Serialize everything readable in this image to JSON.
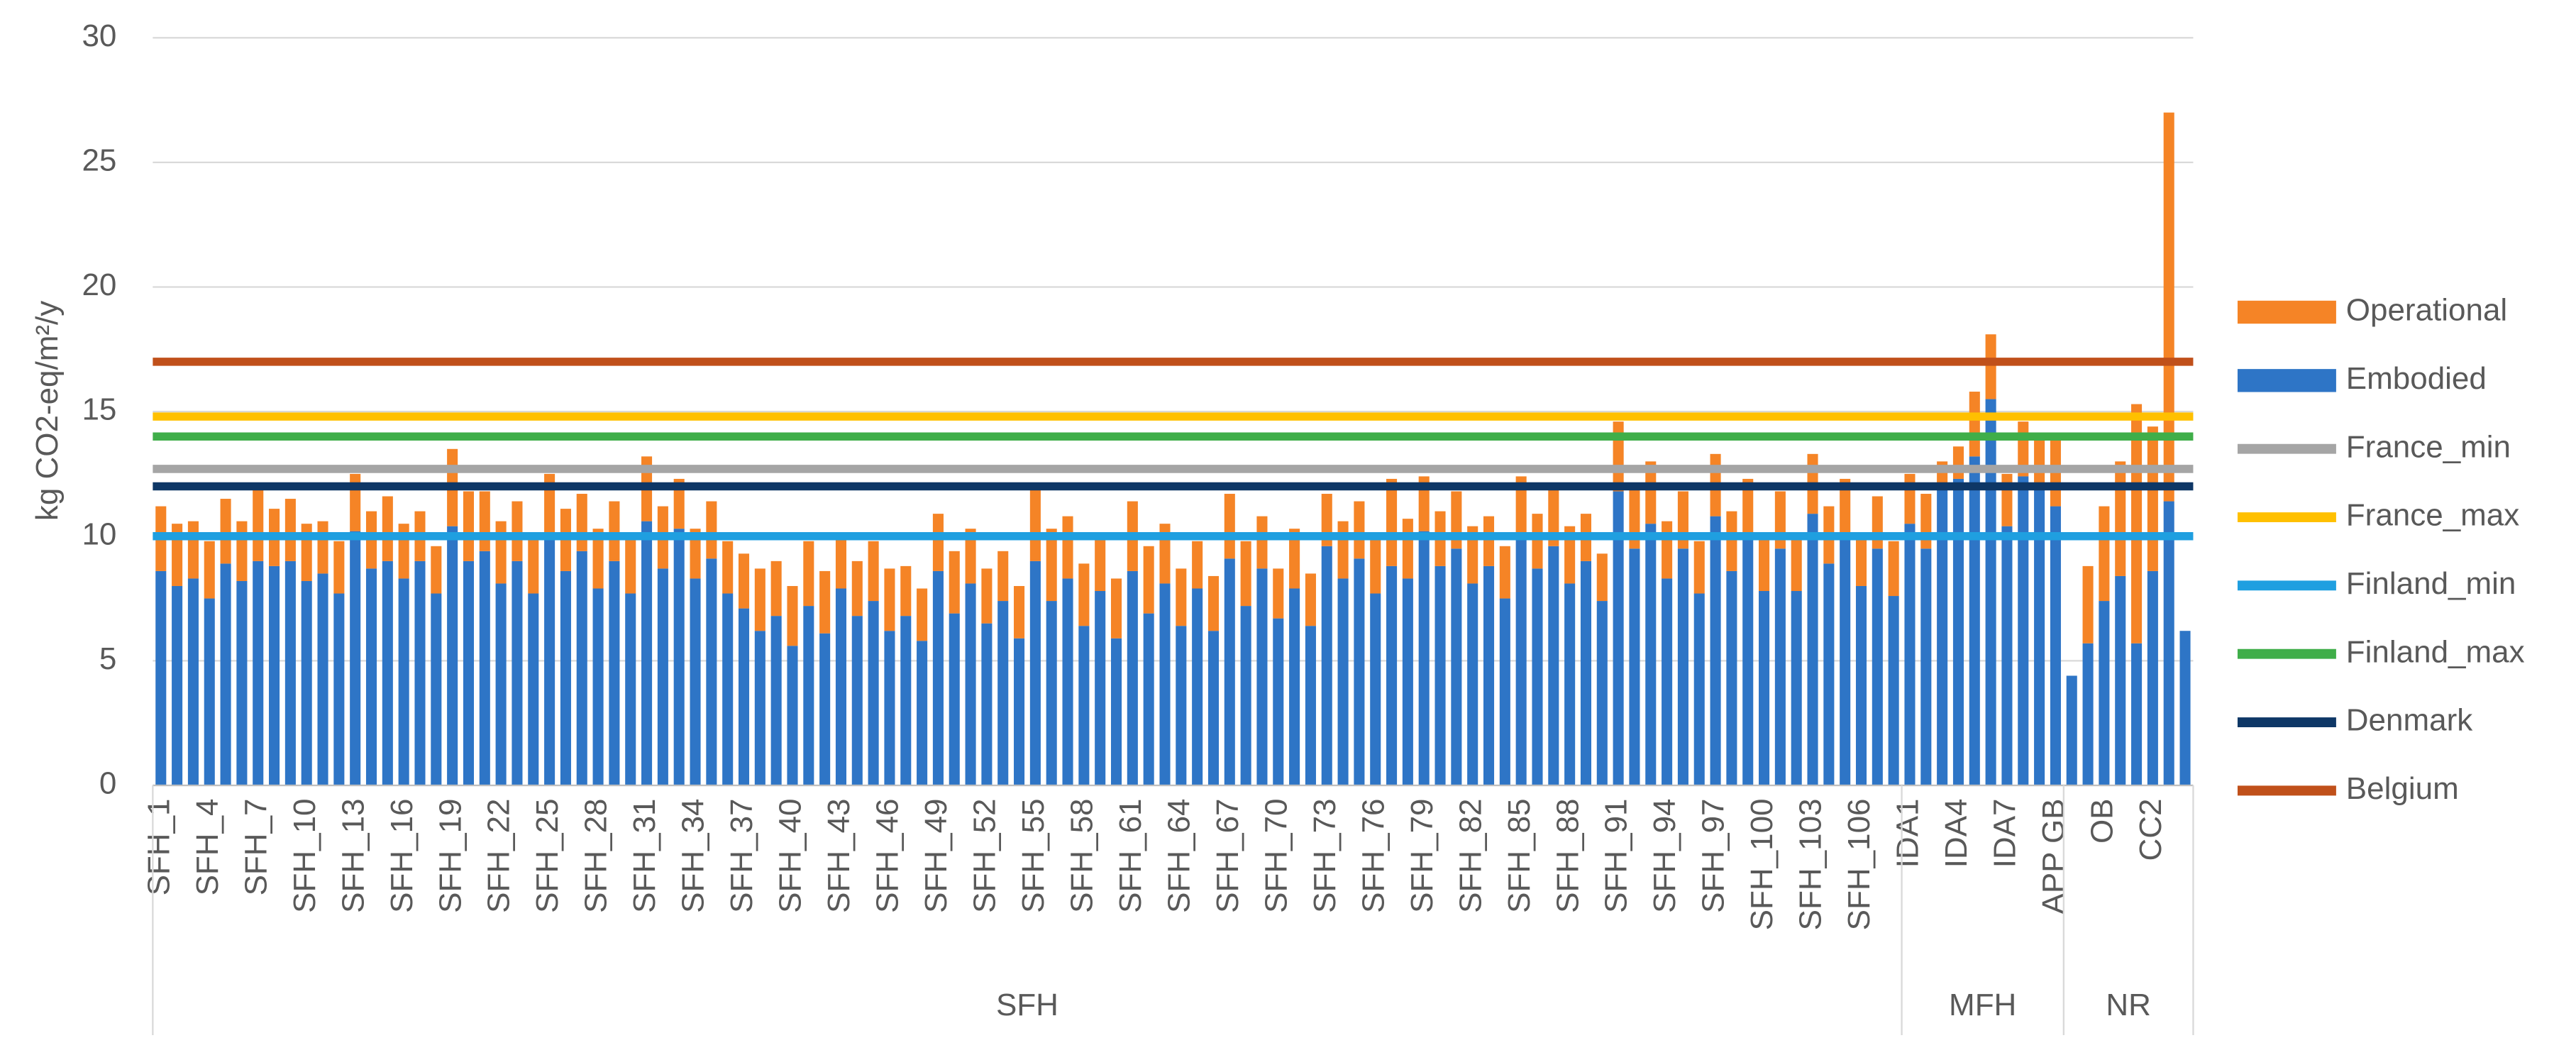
{
  "chart_data": {
    "type": "stacked_bar",
    "y_label": "kg CO2-eq/m²/y",
    "ylim": [
      0,
      30
    ],
    "yticks": [
      0,
      5,
      10,
      15,
      20,
      25,
      30
    ],
    "grid": true,
    "legend": "right",
    "categories": [
      "SFH_1",
      null,
      null,
      "SFH_4",
      null,
      null,
      "SFH_7",
      null,
      null,
      "SFH_10",
      null,
      null,
      "SFH_13",
      null,
      null,
      "SFH_16",
      null,
      null,
      "SFH_19",
      null,
      null,
      "SFH_22",
      null,
      null,
      "SFH_25",
      null,
      null,
      "SFH_28",
      null,
      null,
      "SFH_31",
      null,
      null,
      "SFH_34",
      null,
      null,
      "SFH_37",
      null,
      null,
      "SFH_40",
      null,
      null,
      "SFH_43",
      null,
      null,
      "SFH_46",
      null,
      null,
      "SFH_49",
      null,
      null,
      "SFH_52",
      null,
      null,
      "SFH_55",
      null,
      null,
      "SFH_58",
      null,
      null,
      "SFH_61",
      null,
      null,
      "SFH_64",
      null,
      null,
      "SFH_67",
      null,
      null,
      "SFH_70",
      null,
      null,
      "SFH_73",
      null,
      null,
      "SFH_76",
      null,
      null,
      "SFH_79",
      null,
      null,
      "SFH_82",
      null,
      null,
      "SFH_85",
      null,
      null,
      "SFH_88",
      null,
      null,
      "SFH_91",
      null,
      null,
      "SFH_94",
      null,
      null,
      "SFH_97",
      null,
      null,
      "SFH_100",
      null,
      null,
      "SFH_103",
      null,
      null,
      "SFH_106",
      null,
      null,
      "IDA1",
      null,
      null,
      "IDA4",
      null,
      null,
      "IDA7",
      null,
      null,
      "APP GB",
      null,
      null,
      "OB",
      null,
      null,
      "CC2",
      null,
      null
    ],
    "groups": [
      {
        "name": "SFH",
        "span": 108
      },
      {
        "name": "MFH",
        "span": 10
      },
      {
        "name": "NR",
        "span": 8
      }
    ],
    "series": [
      {
        "name": "Embodied",
        "color": "#2e75c6",
        "values": [
          8.6,
          8.0,
          8.3,
          7.5,
          8.9,
          8.2,
          9.0,
          8.8,
          9.0,
          8.2,
          8.5,
          7.7,
          10.2,
          8.7,
          9.0,
          8.3,
          9.0,
          7.7,
          10.4,
          9.0,
          9.4,
          8.1,
          9.0,
          7.7,
          10.0,
          8.6,
          9.4,
          7.9,
          9.0,
          7.7,
          10.6,
          8.7,
          10.3,
          8.3,
          9.1,
          7.7,
          7.1,
          6.2,
          6.8,
          5.6,
          7.2,
          6.1,
          7.9,
          6.8,
          7.4,
          6.2,
          6.8,
          5.8,
          8.6,
          6.9,
          8.1,
          6.5,
          7.4,
          5.9,
          9.0,
          7.4,
          8.3,
          6.4,
          7.8,
          5.9,
          8.6,
          6.9,
          8.1,
          6.4,
          7.9,
          6.2,
          9.1,
          7.2,
          8.7,
          6.7,
          7.9,
          6.4,
          9.6,
          8.3,
          9.1,
          7.7,
          8.8,
          8.3,
          10.2,
          8.8,
          9.5,
          8.1,
          8.8,
          7.5,
          9.9,
          8.7,
          9.6,
          8.1,
          9.0,
          7.4,
          11.8,
          9.5,
          10.5,
          8.3,
          9.5,
          7.7,
          10.8,
          8.6,
          10.0,
          7.8,
          9.5,
          7.8,
          10.9,
          8.9,
          10.1,
          8.0,
          9.5,
          7.6,
          10.5,
          9.5,
          12.0,
          12.3,
          13.2,
          15.5,
          10.4,
          12.4,
          12.0,
          11.2,
          4.4,
          5.7,
          7.4,
          8.4,
          5.7,
          8.6,
          11.4,
          6.2
        ]
      },
      {
        "name": "Operational",
        "color": "#f58426",
        "values": [
          2.6,
          2.5,
          2.3,
          2.3,
          2.6,
          2.4,
          2.9,
          2.3,
          2.5,
          2.3,
          2.1,
          2.1,
          2.3,
          2.3,
          2.6,
          2.2,
          2.0,
          1.9,
          3.1,
          2.8,
          2.4,
          2.5,
          2.4,
          2.3,
          2.5,
          2.5,
          2.3,
          2.4,
          2.4,
          2.3,
          2.6,
          2.5,
          2.0,
          2.0,
          2.3,
          2.1,
          2.2,
          2.5,
          2.2,
          2.4,
          2.6,
          2.5,
          2.1,
          2.2,
          2.4,
          2.5,
          2.0,
          2.1,
          2.3,
          2.5,
          2.2,
          2.2,
          2.0,
          2.1,
          2.9,
          2.9,
          2.5,
          2.5,
          2.1,
          2.4,
          2.8,
          2.7,
          2.4,
          2.3,
          1.9,
          2.2,
          2.6,
          2.6,
          2.1,
          2.0,
          2.4,
          2.1,
          2.1,
          2.3,
          2.3,
          2.2,
          3.5,
          2.4,
          2.2,
          2.2,
          2.3,
          2.3,
          2.0,
          2.1,
          2.5,
          2.2,
          2.3,
          2.3,
          1.9,
          1.9,
          2.8,
          2.5,
          2.5,
          2.3,
          2.3,
          2.1,
          2.5,
          2.4,
          2.3,
          2.2,
          2.3,
          2.1,
          2.4,
          2.3,
          2.2,
          2.1,
          2.1,
          2.2,
          2.0,
          2.2,
          1.0,
          1.3,
          2.6,
          2.6,
          2.1,
          2.2,
          1.9,
          2.7,
          0,
          3.1,
          3.8,
          4.6,
          9.6,
          5.8,
          15.6,
          0
        ]
      }
    ],
    "reference_lines": [
      {
        "name": "France_min",
        "value": 12.7,
        "color": "#a5a5a5"
      },
      {
        "name": "France_max",
        "value": 14.8,
        "color": "#ffc000"
      },
      {
        "name": "Finland_min",
        "value": 10,
        "color": "#1f9fe0"
      },
      {
        "name": "Finland_max",
        "value": 14,
        "color": "#3fae49"
      },
      {
        "name": "Denmark",
        "value": 12,
        "color": "#0e3766"
      },
      {
        "name": "Belgium",
        "value": 17,
        "color": "#c0501a"
      }
    ]
  }
}
